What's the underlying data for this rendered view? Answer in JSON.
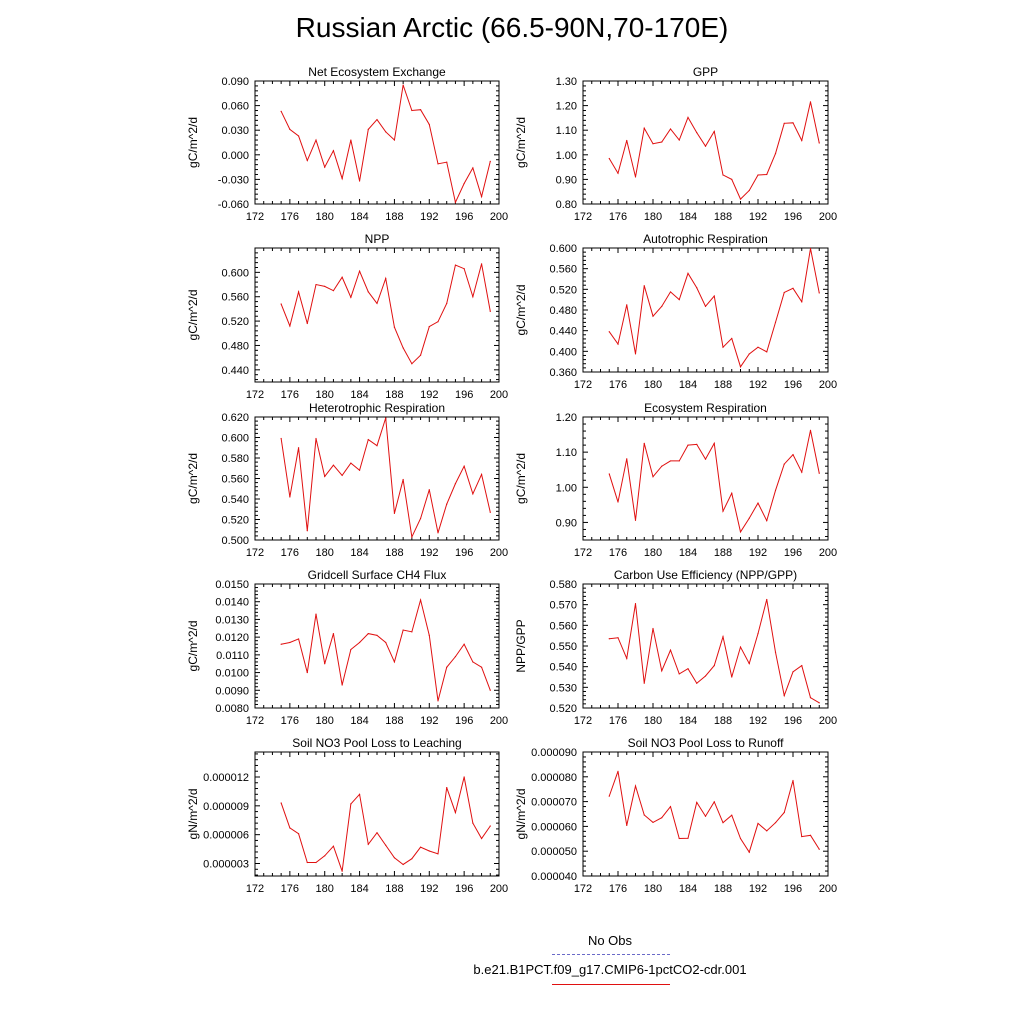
{
  "title": "Russian Arctic (66.5-90N,70-170E)",
  "legend": {
    "obs_label": "No Obs",
    "obs_color": "#6a6ac8",
    "model_label": "b.e21.B1PCT.f09_g17.CMIP6-1pctCO2-cdr.001",
    "model_color": "#e01010"
  },
  "chart_data": [
    {
      "type": "line",
      "title": "Net Ecosystem Exchange",
      "ylabel": "gC/m^2/d",
      "xlim": [
        172,
        200
      ],
      "xticks": [
        "172",
        "176",
        "180",
        "184",
        "188",
        "192",
        "196",
        "200"
      ],
      "ylim": [
        -0.06,
        0.09
      ],
      "yticks": [
        "-0.060",
        "-0.030",
        "0.000",
        "0.030",
        "0.060",
        "0.090"
      ],
      "x": [
        175,
        176,
        177,
        178,
        179,
        180,
        181,
        182,
        183,
        184,
        185,
        186,
        187,
        188,
        189,
        190,
        191,
        192,
        193,
        194,
        195,
        196,
        197,
        198,
        199
      ],
      "series": [
        {
          "values": [
            0.053,
            0.031,
            0.023,
            -0.007,
            0.018,
            -0.015,
            0.005,
            -0.029,
            0.018,
            -0.032,
            0.031,
            0.043,
            0.028,
            0.018,
            0.085,
            0.054,
            0.055,
            0.037,
            -0.011,
            -0.009,
            -0.058,
            -0.035,
            -0.016,
            -0.051,
            -0.008
          ]
        }
      ]
    },
    {
      "type": "line",
      "title": "GPP",
      "ylabel": "gC/m^2/d",
      "xlim": [
        172,
        200
      ],
      "xticks": [
        "172",
        "176",
        "180",
        "184",
        "188",
        "192",
        "196",
        "200"
      ],
      "ylim": [
        0.8,
        1.3
      ],
      "yticks": [
        "0.80",
        "0.90",
        "1.00",
        "1.10",
        "1.20",
        "1.30"
      ],
      "x": [
        175,
        176,
        177,
        178,
        179,
        180,
        181,
        182,
        183,
        184,
        185,
        186,
        187,
        188,
        189,
        190,
        191,
        192,
        193,
        194,
        195,
        196,
        197,
        198,
        199
      ],
      "series": [
        {
          "values": [
            0.985,
            0.925,
            1.058,
            0.91,
            1.108,
            1.045,
            1.052,
            1.105,
            1.06,
            1.152,
            1.09,
            1.035,
            1.095,
            0.918,
            0.9,
            0.82,
            0.855,
            0.918,
            0.92,
            1.005,
            1.128,
            1.13,
            1.058,
            1.215,
            1.048
          ]
        }
      ]
    },
    {
      "type": "line",
      "title": "NPP",
      "ylabel": "gC/m^2/d",
      "xlim": [
        172,
        200
      ],
      "xticks": [
        "172",
        "176",
        "180",
        "184",
        "188",
        "192",
        "196",
        "200"
      ],
      "ylim": [
        0.42,
        0.64
      ],
      "yticks": [
        "0.440",
        "0.480",
        "0.520",
        "0.560",
        "0.600"
      ],
      "x": [
        175,
        176,
        177,
        178,
        179,
        180,
        181,
        182,
        183,
        184,
        185,
        186,
        187,
        188,
        189,
        190,
        191,
        192,
        193,
        194,
        195,
        196,
        197,
        198,
        199
      ],
      "series": [
        {
          "values": [
            0.548,
            0.512,
            0.568,
            0.516,
            0.58,
            0.577,
            0.57,
            0.592,
            0.559,
            0.602,
            0.568,
            0.549,
            0.59,
            0.51,
            0.476,
            0.45,
            0.464,
            0.511,
            0.519,
            0.549,
            0.612,
            0.606,
            0.56,
            0.614,
            0.536
          ]
        }
      ]
    },
    {
      "type": "line",
      "title": "Autotrophic Respiration",
      "ylabel": "gC/m^2/d",
      "xlim": [
        172,
        200
      ],
      "xticks": [
        "172",
        "176",
        "180",
        "184",
        "188",
        "192",
        "196",
        "200"
      ],
      "ylim": [
        0.36,
        0.6
      ],
      "yticks": [
        "0.360",
        "0.400",
        "0.440",
        "0.480",
        "0.520",
        "0.560",
        "0.600"
      ],
      "x": [
        175,
        176,
        177,
        178,
        179,
        180,
        181,
        182,
        183,
        184,
        185,
        186,
        187,
        188,
        189,
        190,
        191,
        192,
        193,
        194,
        195,
        196,
        197,
        198,
        199
      ],
      "series": [
        {
          "values": [
            0.438,
            0.414,
            0.49,
            0.395,
            0.527,
            0.468,
            0.487,
            0.515,
            0.5,
            0.551,
            0.523,
            0.487,
            0.507,
            0.408,
            0.425,
            0.37,
            0.395,
            0.408,
            0.399,
            0.456,
            0.514,
            0.522,
            0.496,
            0.599,
            0.513
          ]
        }
      ]
    },
    {
      "type": "line",
      "title": "Heterotrophic Respiration",
      "ylabel": "gC/m^2/d",
      "xlim": [
        172,
        200
      ],
      "xticks": [
        "172",
        "176",
        "180",
        "184",
        "188",
        "192",
        "196",
        "200"
      ],
      "ylim": [
        0.5,
        0.62
      ],
      "yticks": [
        "0.500",
        "0.520",
        "0.540",
        "0.560",
        "0.580",
        "0.600",
        "0.620"
      ],
      "x": [
        175,
        176,
        177,
        178,
        179,
        180,
        181,
        182,
        183,
        184,
        185,
        186,
        187,
        188,
        189,
        190,
        191,
        192,
        193,
        194,
        195,
        196,
        197,
        198,
        199
      ],
      "series": [
        {
          "values": [
            0.599,
            0.542,
            0.59,
            0.509,
            0.599,
            0.562,
            0.573,
            0.563,
            0.575,
            0.568,
            0.598,
            0.592,
            0.619,
            0.526,
            0.559,
            0.503,
            0.521,
            0.549,
            0.507,
            0.535,
            0.555,
            0.572,
            0.545,
            0.564,
            0.527
          ]
        }
      ]
    },
    {
      "type": "line",
      "title": "Ecosystem Respiration",
      "ylabel": "gC/m^2/d",
      "xlim": [
        172,
        200
      ],
      "xticks": [
        "172",
        "176",
        "180",
        "184",
        "188",
        "192",
        "196",
        "200"
      ],
      "ylim": [
        0.85,
        1.2
      ],
      "yticks": [
        "0.90",
        "1.00",
        "1.10",
        "1.20"
      ],
      "x": [
        175,
        176,
        177,
        178,
        179,
        180,
        181,
        182,
        183,
        184,
        185,
        186,
        187,
        188,
        189,
        190,
        191,
        192,
        193,
        194,
        195,
        196,
        197,
        198,
        199
      ],
      "series": [
        {
          "values": [
            1.038,
            0.958,
            1.081,
            0.906,
            1.125,
            1.03,
            1.06,
            1.075,
            1.075,
            1.12,
            1.122,
            1.08,
            1.125,
            0.932,
            0.983,
            0.873,
            0.912,
            0.955,
            0.905,
            0.991,
            1.066,
            1.093,
            1.043,
            1.162,
            1.04
          ]
        }
      ]
    },
    {
      "type": "line",
      "title": "Gridcell Surface CH4 Flux",
      "ylabel": "gC/m^2/d",
      "xlim": [
        172,
        200
      ],
      "xticks": [
        "172",
        "176",
        "180",
        "184",
        "188",
        "192",
        "196",
        "200"
      ],
      "ylim": [
        0.008,
        0.015
      ],
      "yticks": [
        "0.0080",
        "0.0090",
        "0.0100",
        "0.0110",
        "0.0120",
        "0.0130",
        "0.0140",
        "0.0150"
      ],
      "x": [
        175,
        176,
        177,
        178,
        179,
        180,
        181,
        182,
        183,
        184,
        185,
        186,
        187,
        188,
        189,
        190,
        191,
        192,
        193,
        194,
        195,
        196,
        197,
        198,
        199
      ],
      "series": [
        {
          "values": [
            0.0116,
            0.0117,
            0.0119,
            0.01,
            0.0133,
            0.0105,
            0.0122,
            0.0093,
            0.0113,
            0.0117,
            0.0122,
            0.0121,
            0.0117,
            0.0106,
            0.0124,
            0.0123,
            0.0141,
            0.0121,
            0.0084,
            0.0103,
            0.0109,
            0.0116,
            0.0106,
            0.0103,
            0.009
          ]
        }
      ]
    },
    {
      "type": "line",
      "title": "Carbon Use Efficiency (NPP/GPP)",
      "ylabel": "NPP/GPP",
      "xlim": [
        172,
        200
      ],
      "xticks": [
        "172",
        "176",
        "180",
        "184",
        "188",
        "192",
        "196",
        "200"
      ],
      "ylim": [
        0.52,
        0.58
      ],
      "yticks": [
        "0.520",
        "0.530",
        "0.540",
        "0.550",
        "0.560",
        "0.570",
        "0.580"
      ],
      "x": [
        175,
        176,
        177,
        178,
        179,
        180,
        181,
        182,
        183,
        184,
        185,
        186,
        187,
        188,
        189,
        190,
        191,
        192,
        193,
        194,
        195,
        196,
        197,
        198,
        199
      ],
      "series": [
        {
          "values": [
            0.5535,
            0.554,
            0.544,
            0.5705,
            0.532,
            0.5585,
            0.538,
            0.548,
            0.5365,
            0.539,
            0.532,
            0.5355,
            0.5405,
            0.5545,
            0.535,
            0.5495,
            0.5415,
            0.556,
            0.5725,
            0.547,
            0.526,
            0.5375,
            0.5405,
            0.525,
            0.5225
          ]
        }
      ]
    },
    {
      "type": "line",
      "title": "Soil NO3 Pool Loss to Leaching",
      "ylabel": "gN/m^2/d",
      "xlim": [
        172,
        200
      ],
      "xticks": [
        "172",
        "176",
        "180",
        "184",
        "188",
        "192",
        "196",
        "200"
      ],
      "ylim": [
        1.7e-06,
        1.46e-05
      ],
      "yticks": [
        "0.000003",
        "0.000006",
        "0.000009",
        "0.000012"
      ],
      "x": [
        175,
        176,
        177,
        178,
        179,
        180,
        181,
        182,
        183,
        184,
        185,
        186,
        187,
        188,
        189,
        190,
        191,
        192,
        193,
        194,
        195,
        196,
        197,
        198,
        199
      ],
      "series": [
        {
          "values": [
            9.3e-06,
            6.7e-06,
            6.1e-06,
            3.1e-06,
            3.1e-06,
            3.8e-06,
            4.8e-06,
            2.2e-06,
            9.2e-06,
            1.02e-05,
            5e-06,
            6.2e-06,
            4.9e-06,
            3.6e-06,
            2.9e-06,
            3.5e-06,
            4.7e-06,
            4.3e-06,
            4e-06,
            1.09e-05,
            8.3e-06,
            1.2e-05,
            7.2e-06,
            5.6e-06,
            6.9e-06
          ]
        }
      ]
    },
    {
      "type": "line",
      "title": "Soil NO3 Pool Loss to Runoff",
      "ylabel": "gN/m^2/d",
      "xlim": [
        172,
        200
      ],
      "xticks": [
        "172",
        "176",
        "180",
        "184",
        "188",
        "192",
        "196",
        "200"
      ],
      "ylim": [
        4e-05,
        9e-05
      ],
      "yticks": [
        "0.000040",
        "0.000050",
        "0.000060",
        "0.000070",
        "0.000080",
        "0.000090"
      ],
      "x": [
        175,
        176,
        177,
        178,
        179,
        180,
        181,
        182,
        183,
        184,
        185,
        186,
        187,
        188,
        189,
        190,
        191,
        192,
        193,
        194,
        195,
        196,
        197,
        198,
        199
      ],
      "series": [
        {
          "values": [
            7.22e-05,
            8.22e-05,
            6.04e-05,
            7.63e-05,
            6.46e-05,
            6.16e-05,
            6.35e-05,
            6.8e-05,
            5.51e-05,
            5.52e-05,
            6.97e-05,
            6.41e-05,
            6.99e-05,
            6.15e-05,
            6.45e-05,
            5.51e-05,
            4.96e-05,
            6.12e-05,
            5.82e-05,
            6.15e-05,
            6.56e-05,
            7.85e-05,
            5.59e-05,
            5.64e-05,
            5.08e-05
          ]
        }
      ]
    }
  ]
}
